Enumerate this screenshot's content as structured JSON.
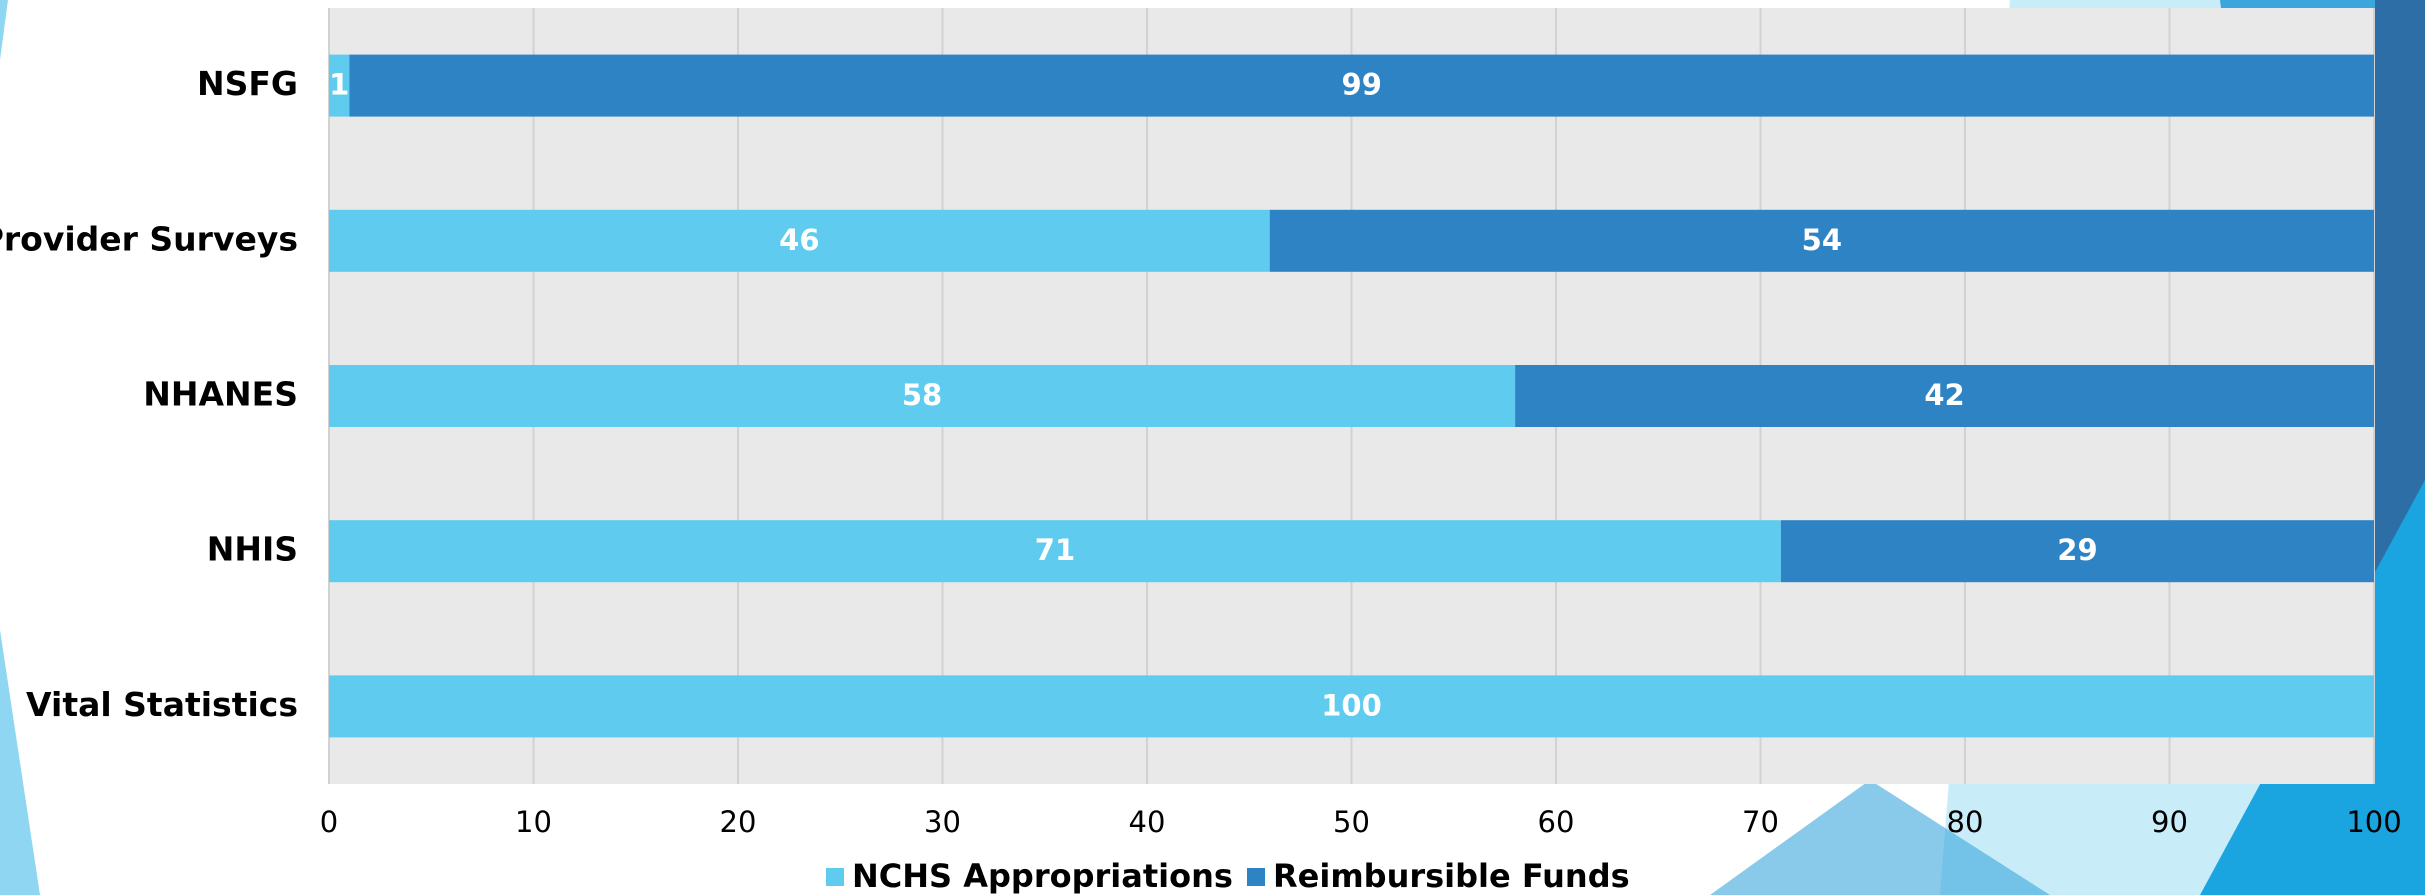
{
  "chart_data": {
    "type": "stacked-bar-horizontal",
    "categories": [
      "NSFG",
      "Provider Surveys",
      "NHANES",
      "NHIS",
      "Vital Statistics"
    ],
    "series": [
      {
        "name": "NCHS Appropriations",
        "color": "#5ecbef",
        "values": [
          1,
          46,
          58,
          71,
          100
        ]
      },
      {
        "name": "Reimbursible Funds",
        "color": "#2e83c4",
        "values": [
          99,
          54,
          42,
          29,
          0
        ]
      }
    ],
    "xlim": [
      0,
      100
    ],
    "xticks": [
      0,
      10,
      20,
      30,
      40,
      50,
      60,
      70,
      80,
      90,
      100
    ],
    "grid": true,
    "legend": "bottom"
  }
}
